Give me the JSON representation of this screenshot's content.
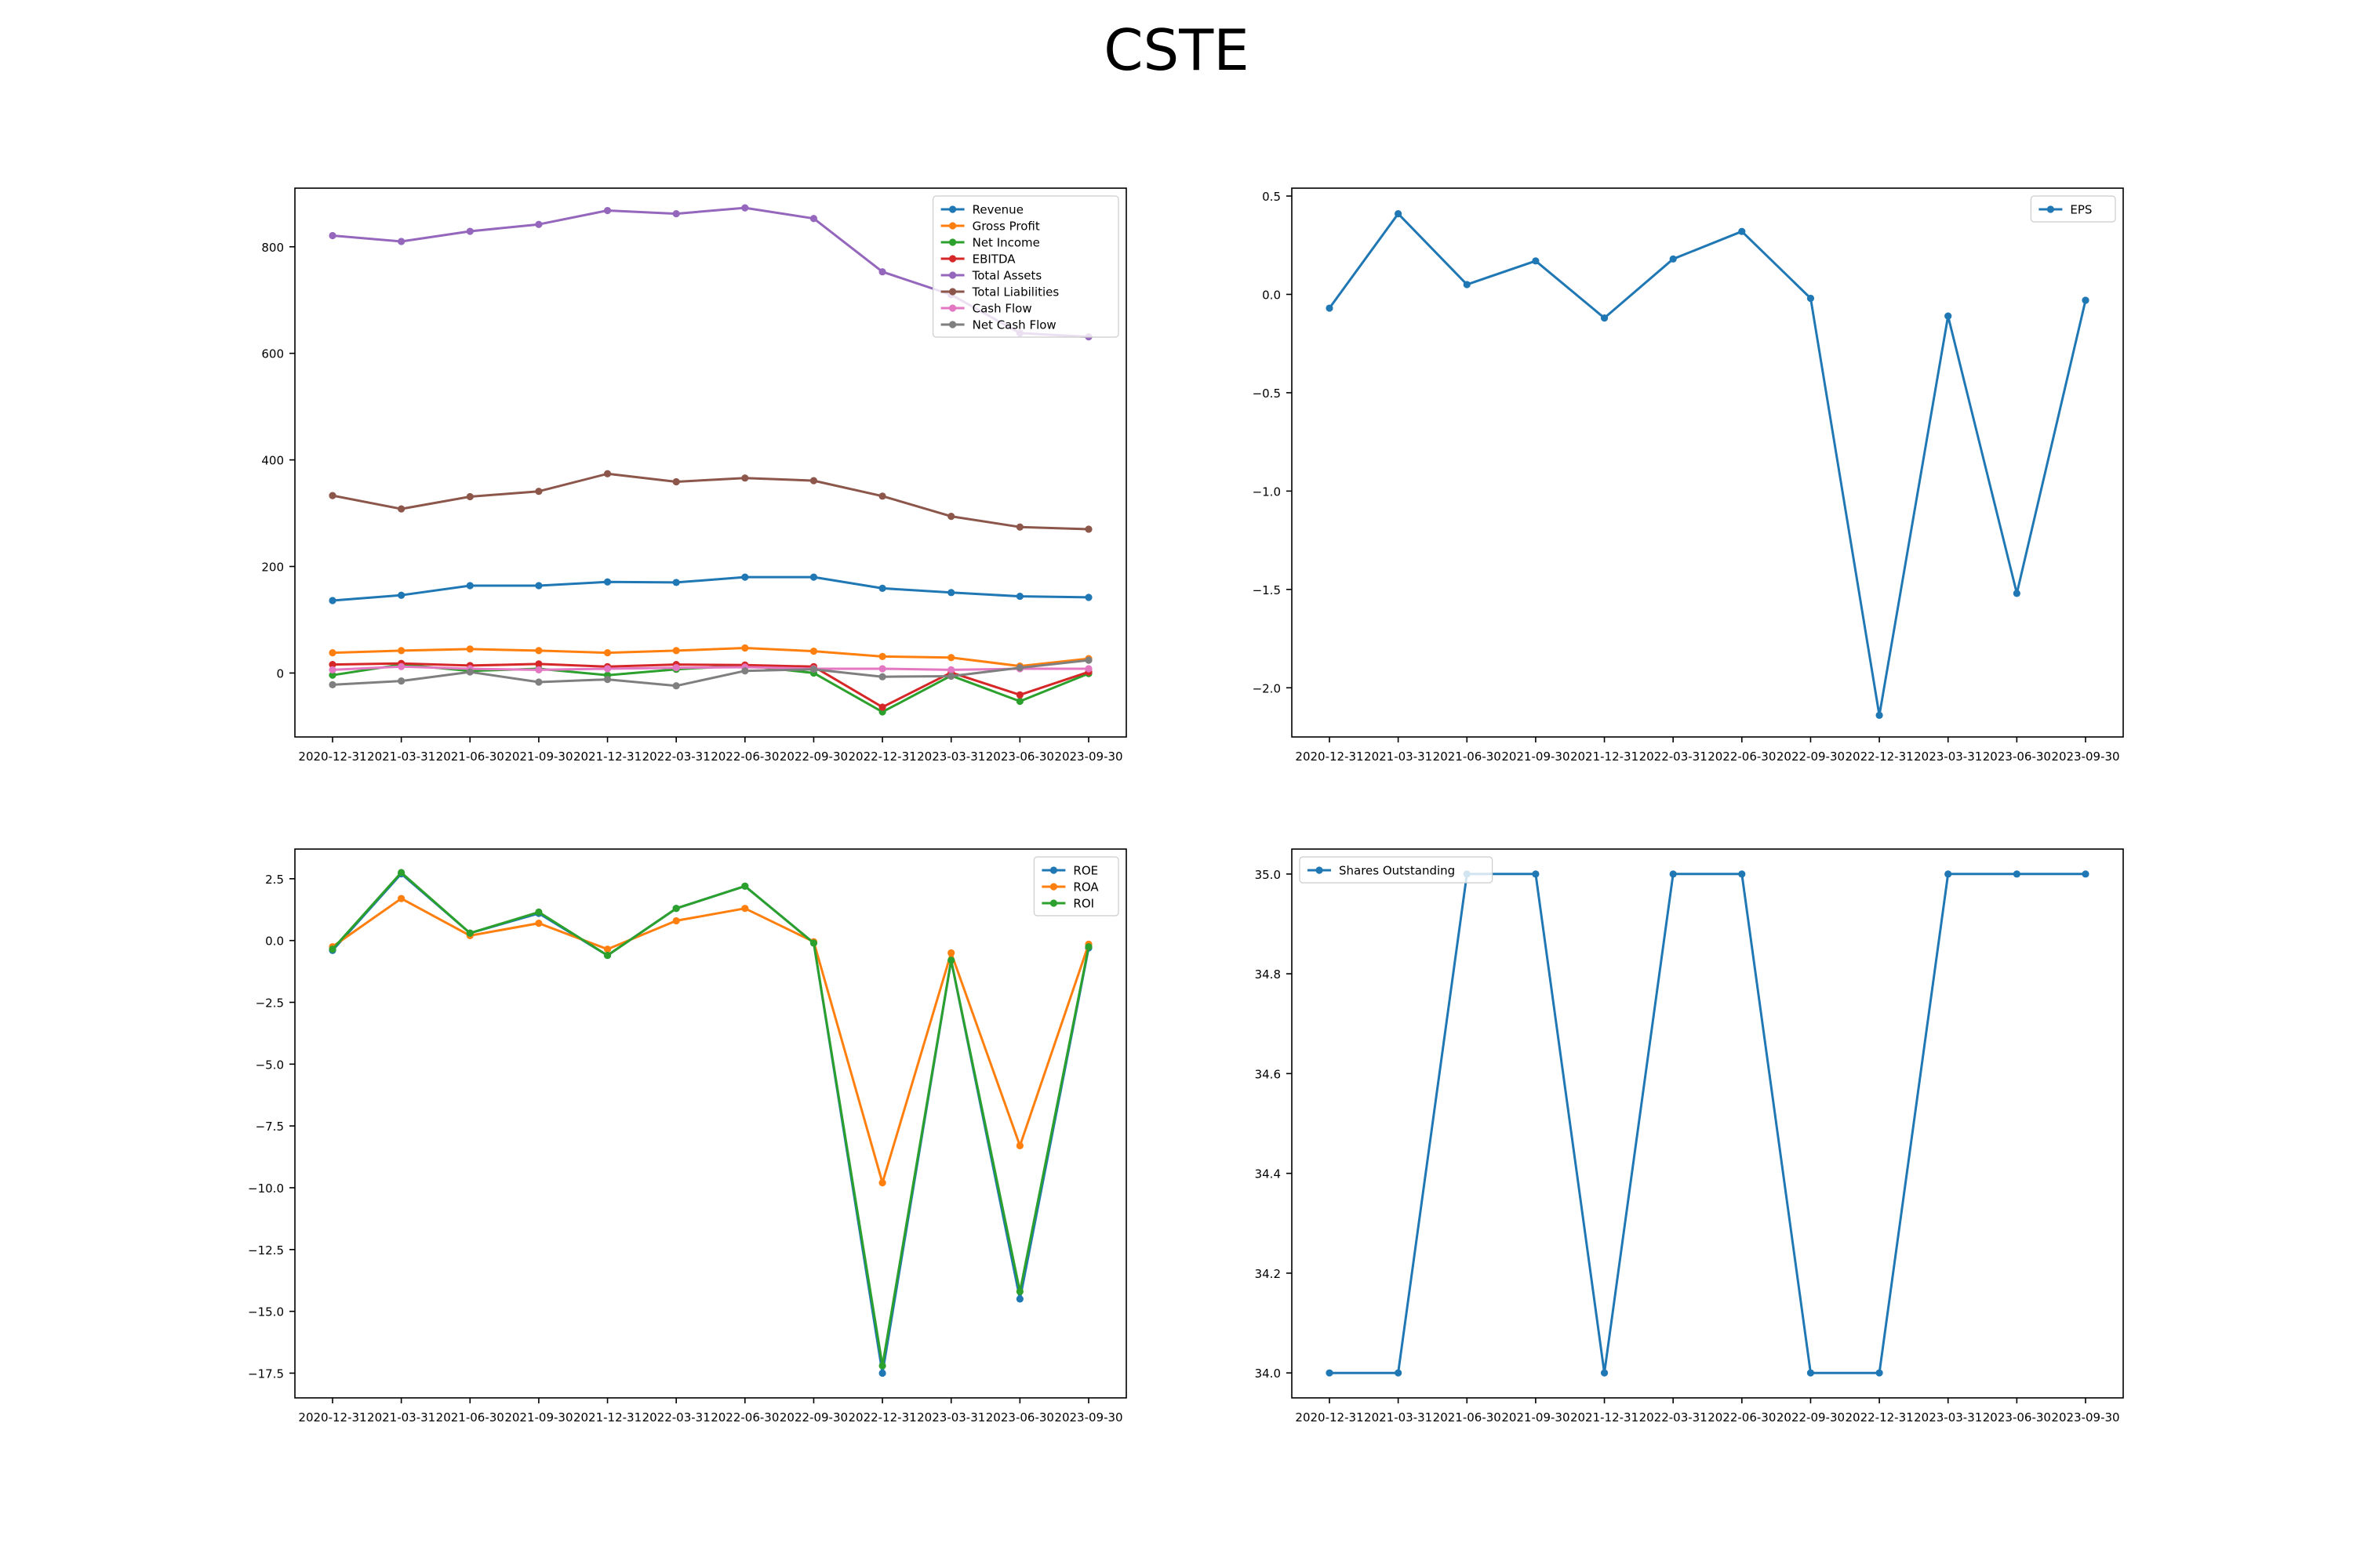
{
  "title": "CSTE",
  "chart_data": [
    {
      "type": "line",
      "x": [
        "2020-12-31",
        "2021-03-31",
        "2021-06-30",
        "2021-09-30",
        "2021-12-31",
        "2022-03-31",
        "2022-06-30",
        "2022-09-30",
        "2022-12-31",
        "2023-03-31",
        "2023-06-30",
        "2023-09-30"
      ],
      "ylim": [
        -120,
        910
      ],
      "yticks": [
        0,
        200,
        400,
        600,
        800
      ],
      "legend": "top-right",
      "series": [
        {
          "name": "Revenue",
          "color": "#1f77b4",
          "values": [
            136,
            146,
            164,
            164,
            171,
            170,
            180,
            180,
            159,
            151,
            144,
            142
          ]
        },
        {
          "name": "Gross Profit",
          "color": "#ff7f0e",
          "values": [
            38,
            42,
            45,
            42,
            38,
            42,
            47,
            41,
            31,
            29,
            13,
            27
          ]
        },
        {
          "name": "Net Income",
          "color": "#2ca02c",
          "values": [
            -4,
            16,
            4,
            8,
            -4,
            7,
            14,
            0,
            -73,
            -5,
            -53,
            -1
          ]
        },
        {
          "name": "EBITDA",
          "color": "#d62728",
          "values": [
            16,
            18,
            14,
            17,
            12,
            16,
            15,
            12,
            -64,
            1,
            -41,
            2
          ]
        },
        {
          "name": "Total Assets",
          "color": "#9467bd",
          "values": [
            821,
            810,
            829,
            842,
            868,
            862,
            873,
            853,
            753,
            710,
            638,
            631
          ]
        },
        {
          "name": "Total Liabilities",
          "color": "#8c564b",
          "values": [
            333,
            308,
            331,
            341,
            374,
            359,
            366,
            361,
            332,
            294,
            274,
            270
          ]
        },
        {
          "name": "Cash Flow",
          "color": "#e377c2",
          "values": [
            6,
            12,
            8,
            6,
            8,
            10,
            11,
            8,
            8,
            6,
            8,
            8
          ]
        },
        {
          "name": "Net Cash Flow",
          "color": "#7f7f7f",
          "values": [
            -22,
            -15,
            2,
            -17,
            -12,
            -24,
            4,
            7,
            -7,
            -6,
            10,
            24
          ]
        }
      ]
    },
    {
      "type": "line",
      "x": [
        "2020-12-31",
        "2021-03-31",
        "2021-06-30",
        "2021-09-30",
        "2021-12-31",
        "2022-03-31",
        "2022-06-30",
        "2022-09-30",
        "2022-12-31",
        "2023-03-31",
        "2023-06-30",
        "2023-09-30"
      ],
      "ylim": [
        -2.25,
        0.54
      ],
      "yticks": [
        0.5,
        0.0,
        -0.5,
        -1.0,
        -1.5,
        -2.0
      ],
      "legend": "top-right",
      "series": [
        {
          "name": "EPS",
          "color": "#1f77b4",
          "values": [
            -0.07,
            0.41,
            0.05,
            0.17,
            -0.12,
            0.18,
            0.32,
            -0.02,
            -2.14,
            -0.11,
            -1.52,
            -0.03
          ]
        }
      ]
    },
    {
      "type": "line",
      "x": [
        "2020-12-31",
        "2021-03-31",
        "2021-06-30",
        "2021-09-30",
        "2021-12-31",
        "2022-03-31",
        "2022-06-30",
        "2022-09-30",
        "2022-12-31",
        "2023-03-31",
        "2023-06-30",
        "2023-09-30"
      ],
      "ylim": [
        -18.5,
        3.7
      ],
      "yticks": [
        2.5,
        0.0,
        -2.5,
        -5.0,
        -7.5,
        -10.0,
        -12.5,
        -15.0,
        -17.5
      ],
      "legend": "top-right",
      "series": [
        {
          "name": "ROE",
          "color": "#1f77b4",
          "values": [
            -0.4,
            2.7,
            0.3,
            1.1,
            -0.6,
            1.3,
            2.2,
            -0.1,
            -17.5,
            -0.8,
            -14.5,
            -0.3
          ]
        },
        {
          "name": "ROA",
          "color": "#ff7f0e",
          "values": [
            -0.25,
            1.7,
            0.2,
            0.7,
            -0.35,
            0.8,
            1.3,
            -0.05,
            -9.8,
            -0.5,
            -8.3,
            -0.15
          ]
        },
        {
          "name": "ROI",
          "color": "#2ca02c",
          "values": [
            -0.35,
            2.75,
            0.3,
            1.15,
            -0.6,
            1.3,
            2.2,
            -0.1,
            -17.2,
            -0.8,
            -14.2,
            -0.25
          ]
        }
      ]
    },
    {
      "type": "line",
      "x": [
        "2020-12-31",
        "2021-03-31",
        "2021-06-30",
        "2021-09-30",
        "2021-12-31",
        "2022-03-31",
        "2022-06-30",
        "2022-09-30",
        "2022-12-31",
        "2023-03-31",
        "2023-06-30",
        "2023-09-30"
      ],
      "ylim": [
        33.95,
        35.05
      ],
      "yticks": [
        35.0,
        34.8,
        34.6,
        34.4,
        34.2,
        34.0
      ],
      "legend": "top-left",
      "series": [
        {
          "name": "Shares Outstanding",
          "color": "#1f77b4",
          "values": [
            34.0,
            34.0,
            35.0,
            35.0,
            34.0,
            35.0,
            35.0,
            34.0,
            34.0,
            35.0,
            35.0,
            35.0
          ]
        }
      ]
    }
  ]
}
